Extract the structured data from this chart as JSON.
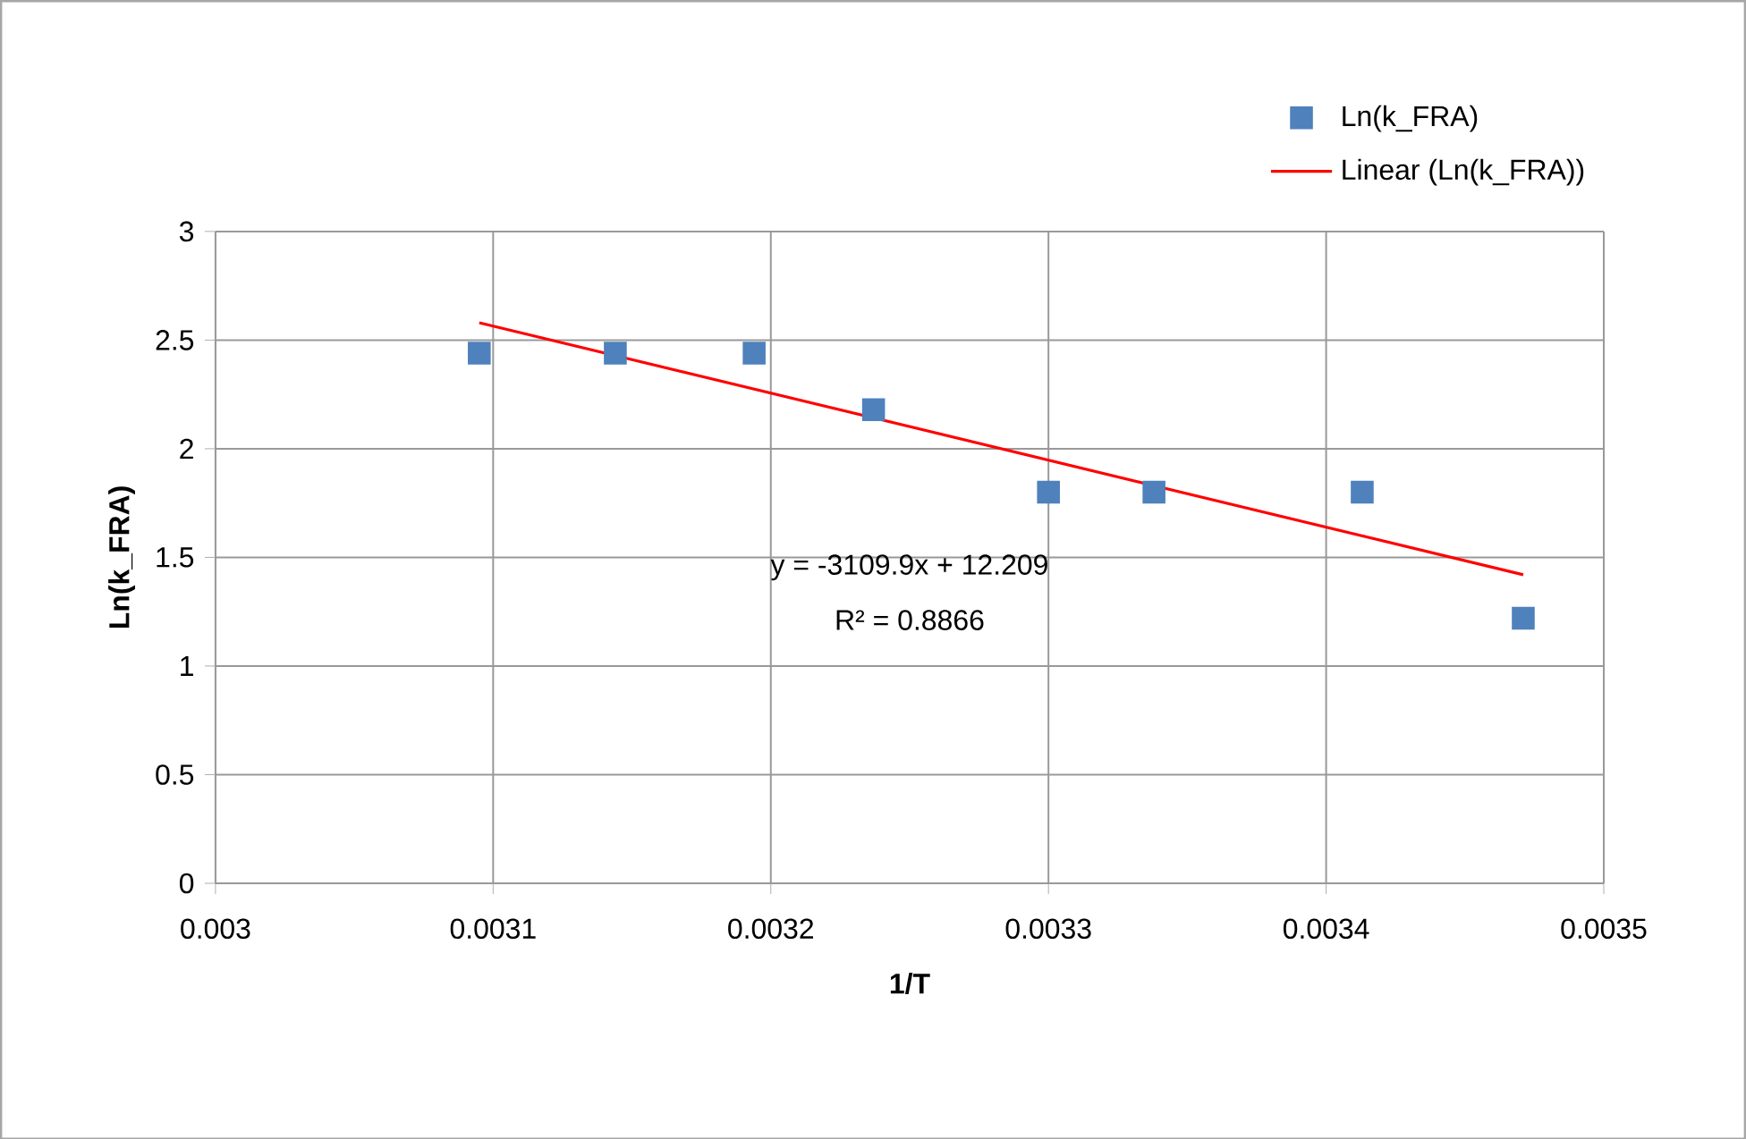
{
  "chart_data": {
    "type": "scatter",
    "xlabel": "1/T",
    "ylabel": "Ln(k_FRA)",
    "series": [
      {
        "name": "Ln(k_FRA)",
        "color": "#4f81bd",
        "marker": "square",
        "x": [
          0.003095,
          0.003144,
          0.003194,
          0.003237,
          0.0033,
          0.003338,
          0.003413,
          0.003471
        ],
        "values": [
          2.44,
          2.44,
          2.44,
          2.18,
          1.8,
          1.8,
          1.8,
          1.22
        ]
      },
      {
        "name": "Linear (Ln(k_FRA))",
        "type": "line",
        "color": "#ff0000",
        "marker": "none",
        "line_style": "solid",
        "x": [
          0.003095,
          0.003471
        ],
        "values": [
          2.58,
          1.42
        ]
      }
    ],
    "xlim": [
      0.003,
      0.0035
    ],
    "xticks": [
      0.003,
      0.0031,
      0.0032,
      0.0033,
      0.0034,
      0.0035
    ],
    "ylim": [
      0,
      3
    ],
    "yticks": [
      0,
      0.5,
      1,
      1.5,
      2,
      2.5,
      3
    ],
    "grid": true,
    "legend": "top right",
    "annotations": [
      "y = -3109.9x + 12.209",
      "R² = 0.8866"
    ]
  }
}
